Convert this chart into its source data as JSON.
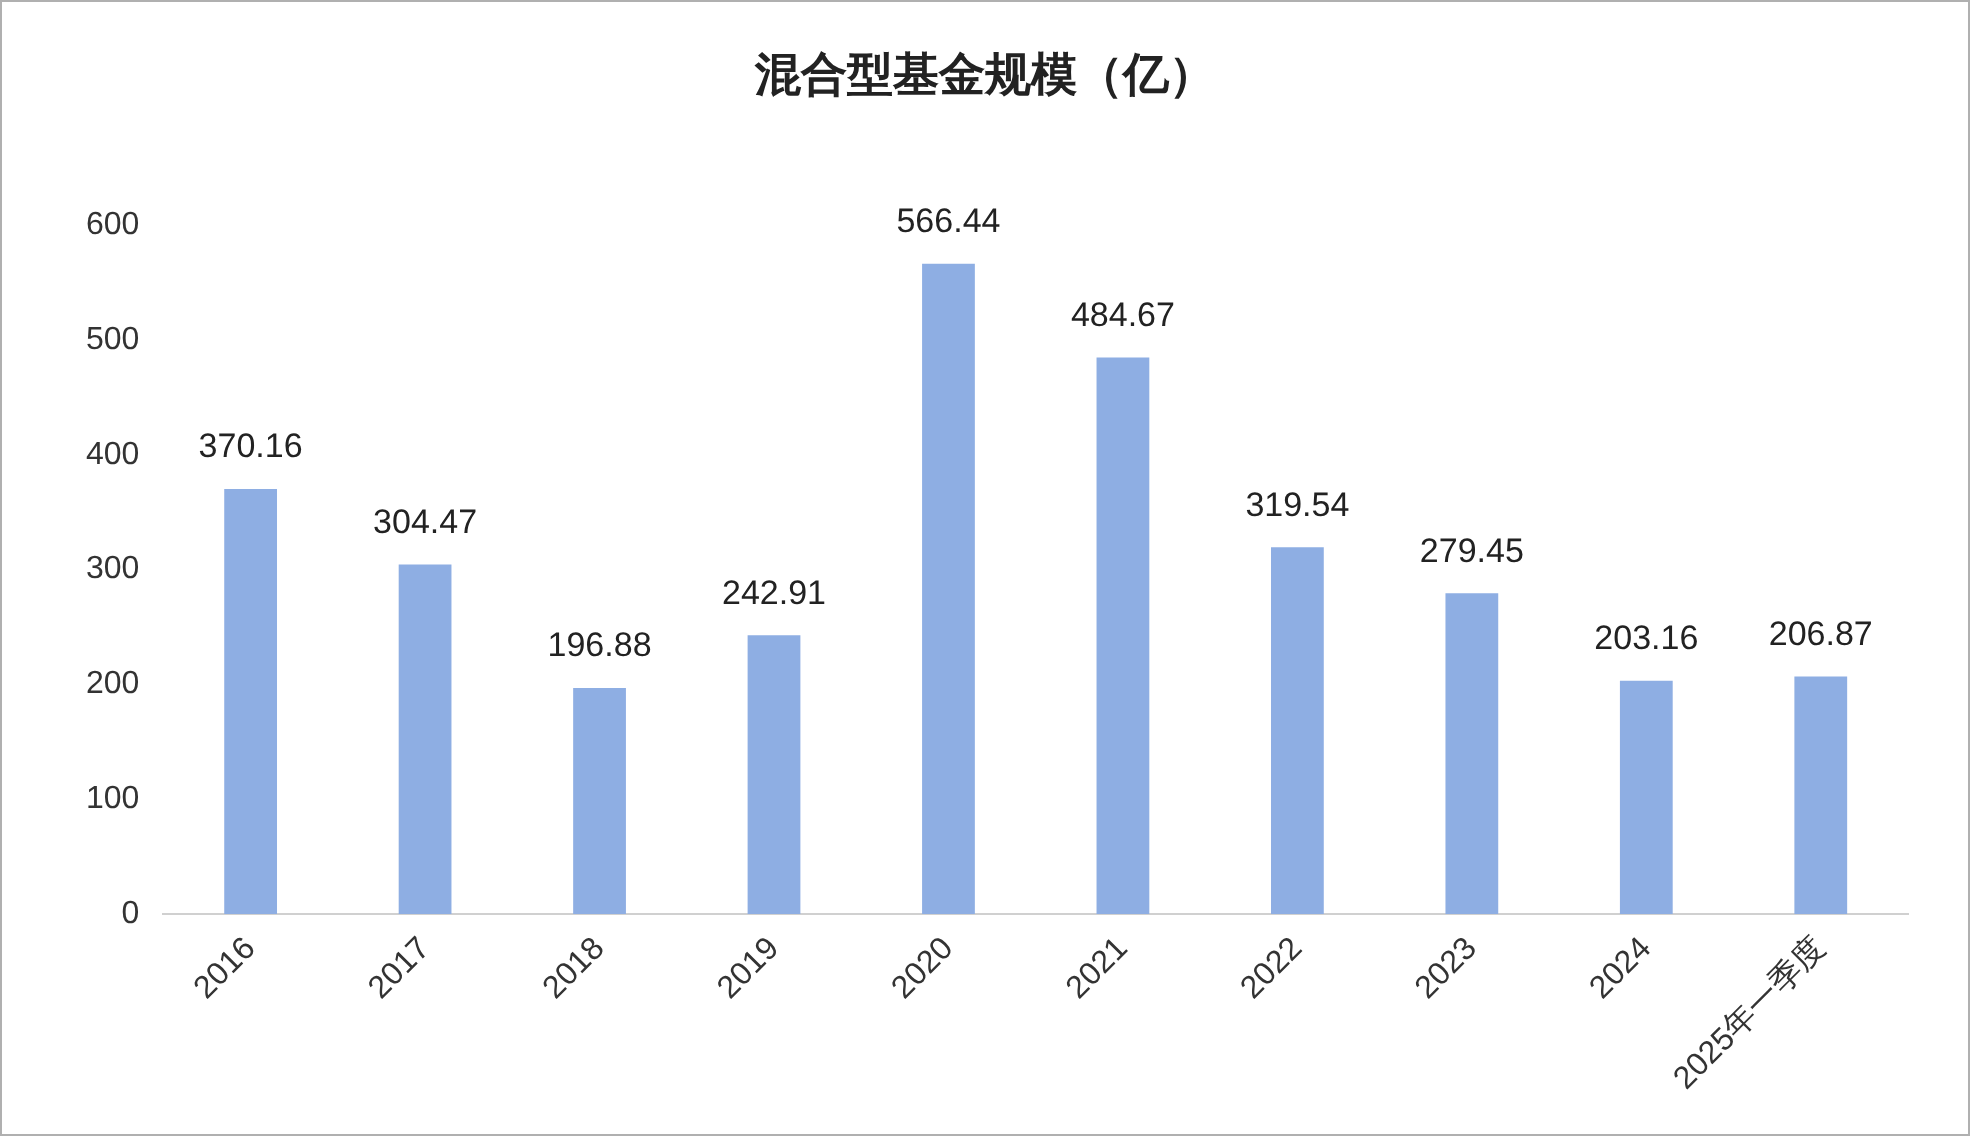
{
  "chart_data": {
    "type": "bar",
    "title": "混合型基金规模（亿）",
    "categories": [
      "2016",
      "2017",
      "2018",
      "2019",
      "2020",
      "2021",
      "2022",
      "2023",
      "2024",
      "2025年一季度"
    ],
    "values": [
      370.16,
      304.47,
      196.88,
      242.91,
      566.44,
      484.67,
      319.54,
      279.45,
      203.16,
      206.87
    ],
    "color": "#8eaee3",
    "ylim": [
      0,
      600
    ],
    "yticks": [
      0,
      100,
      200,
      300,
      400,
      500,
      600
    ],
    "grid": false,
    "data_labels": true
  }
}
